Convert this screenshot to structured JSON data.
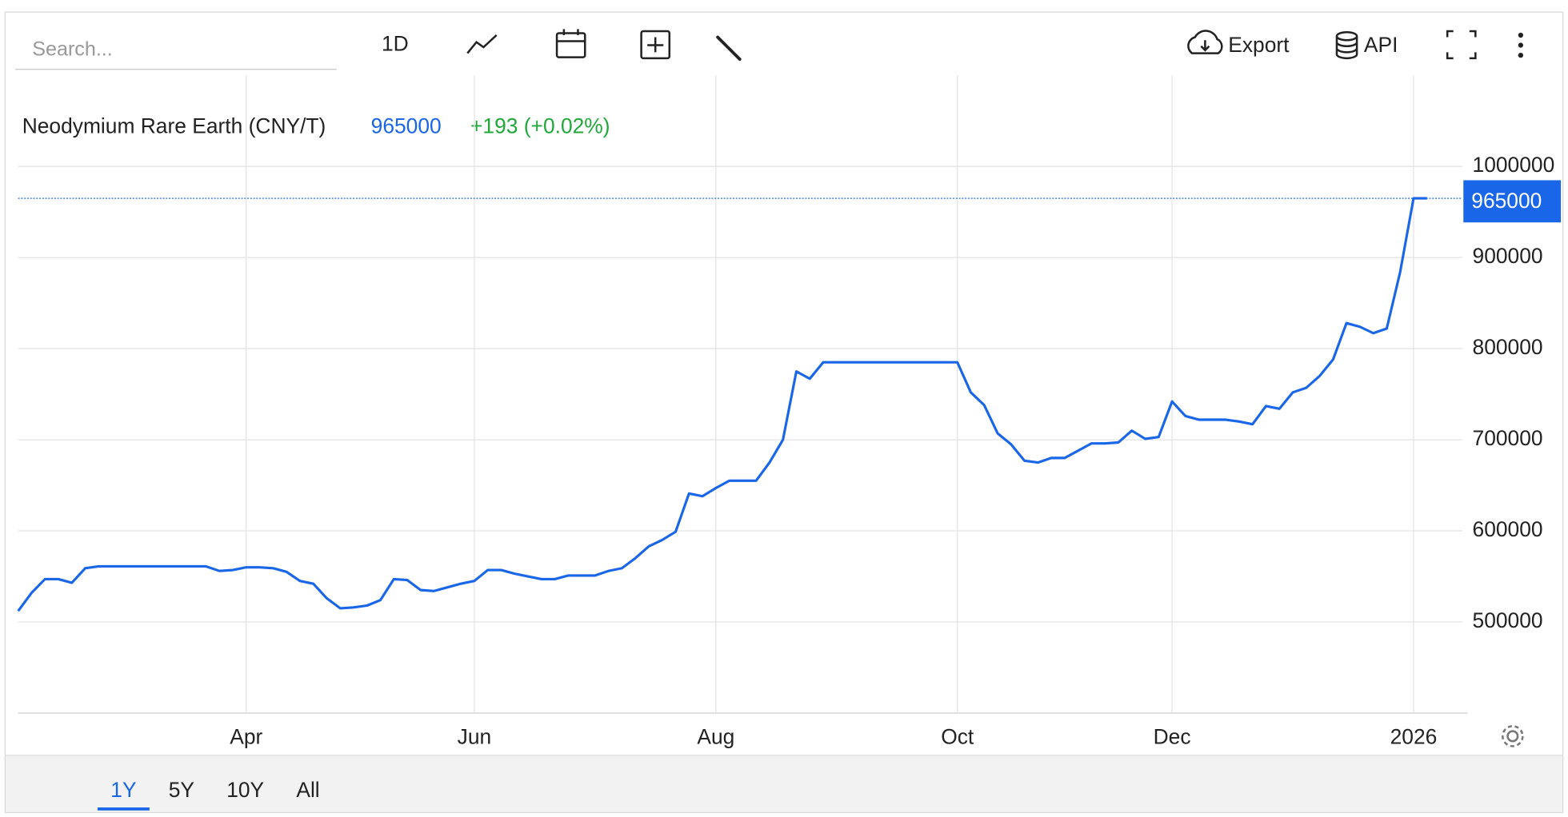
{
  "toolbar": {
    "search_placeholder": "Search...",
    "interval": "1D",
    "export": "Export",
    "api": "API"
  },
  "chart_data": {
    "type": "line",
    "title": "Neodymium Rare Earth (CNY/T)",
    "change": "+193 (+0.02%)",
    "color": "#1a66e8",
    "change_color": "#22a83a",
    "categories": [
      null,
      null,
      null,
      null,
      null,
      null,
      null,
      null,
      null,
      null,
      null,
      null,
      null,
      null,
      null,
      null,
      null,
      "Apr",
      null,
      null,
      null,
      null,
      null,
      null,
      null,
      null,
      null,
      null,
      null,
      null,
      null,
      null,
      null,
      null,
      "Jun",
      null,
      null,
      null,
      null,
      null,
      null,
      null,
      null,
      null,
      null,
      null,
      null,
      null,
      null,
      null,
      null,
      null,
      "Aug",
      null,
      null,
      null,
      null,
      null,
      null,
      null,
      null,
      null,
      null,
      null,
      null,
      null,
      null,
      null,
      null,
      null,
      "Oct",
      null,
      null,
      null,
      null,
      null,
      null,
      null,
      null,
      null,
      null,
      null,
      null,
      null,
      null,
      null,
      "Dec",
      null,
      null,
      null,
      null,
      null,
      null,
      null,
      null,
      null,
      null,
      null,
      null,
      null,
      null,
      null,
      null,
      null,
      "2026",
      null
    ],
    "values": [
      512000,
      532000,
      547000,
      547000,
      543000,
      559000,
      561000,
      561000,
      561000,
      561000,
      561000,
      561000,
      561000,
      561000,
      561000,
      556000,
      557000,
      560000,
      560000,
      559000,
      555000,
      545000,
      542000,
      526000,
      515000,
      516000,
      518000,
      524000,
      547000,
      546000,
      535000,
      534000,
      538000,
      542000,
      545000,
      557000,
      557000,
      553000,
      550000,
      547000,
      547000,
      551000,
      551000,
      551000,
      556000,
      559000,
      570000,
      583000,
      590000,
      599000,
      641000,
      638000,
      647000,
      655000,
      655000,
      655000,
      675000,
      700000,
      775000,
      767000,
      785000,
      785000,
      785000,
      785000,
      785000,
      785000,
      785000,
      785000,
      785000,
      785000,
      785000,
      752000,
      738000,
      707000,
      695000,
      677000,
      675000,
      680000,
      680000,
      688000,
      696000,
      696000,
      697000,
      710000,
      701000,
      703000,
      742000,
      726000,
      722000,
      722000,
      722000,
      720000,
      717000,
      737000,
      734000,
      752000,
      757000,
      770000,
      788000,
      828000,
      824000,
      817000,
      822000,
      884000,
      965000,
      965000
    ],
    "ylim": [
      400000,
      1100000
    ],
    "yticks": [
      500000,
      600000,
      700000,
      800000,
      900000,
      1000000
    ],
    "grid": true
  },
  "range_buttons": [
    "1Y",
    "5Y",
    "10Y",
    "All"
  ],
  "active_range": 0
}
